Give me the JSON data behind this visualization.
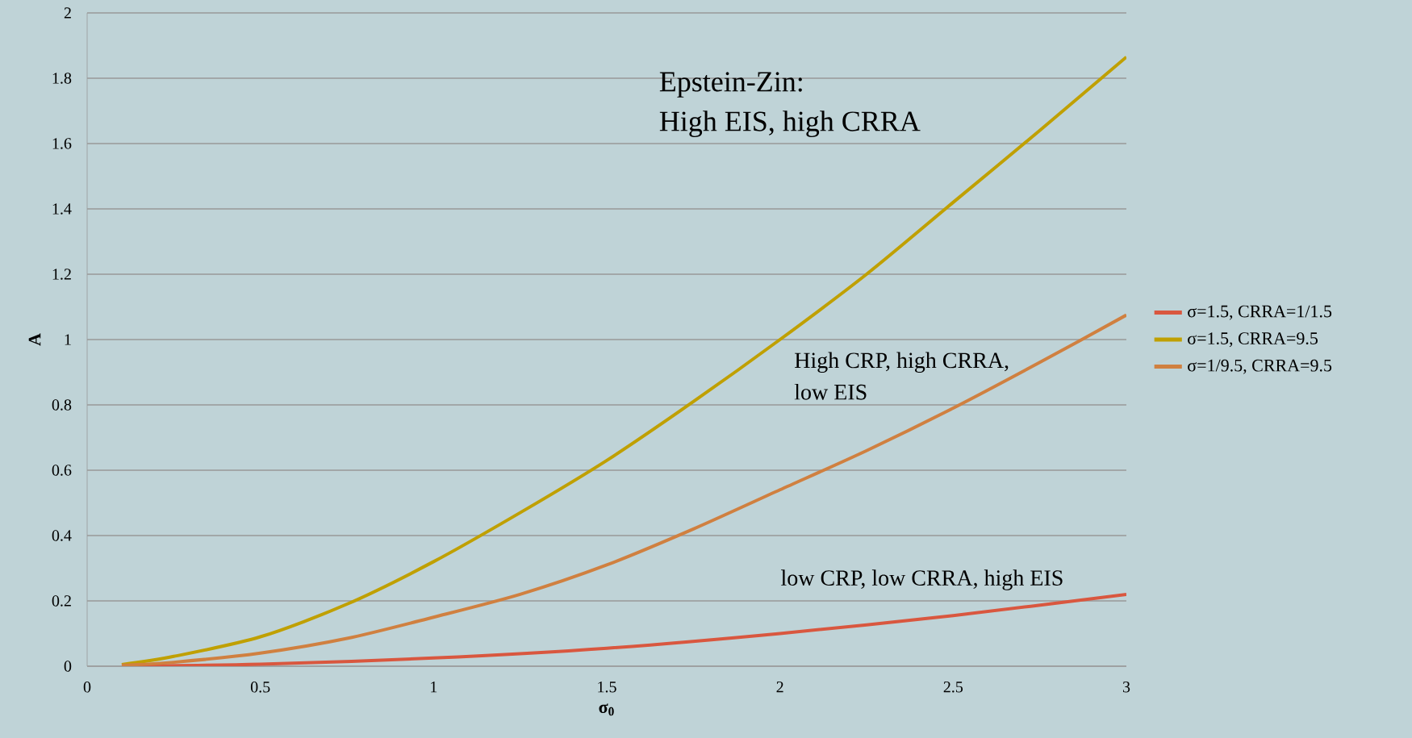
{
  "chart_data": {
    "type": "line",
    "xlabel": "σ$_{0}$",
    "ylabel": "A",
    "xlim": [
      0,
      3
    ],
    "ylim": [
      0,
      2
    ],
    "xticks": [
      0,
      0.5,
      1,
      1.5,
      2,
      2.5,
      3
    ],
    "yticks": [
      0,
      0.2,
      0.4,
      0.6,
      0.8,
      1,
      1.2,
      1.4,
      1.6,
      1.8,
      2
    ],
    "grid": "y",
    "legend": "right",
    "line_style": "solid",
    "marker": "none",
    "series": [
      {
        "name": "σ=1.5, CRRA=1/1.5",
        "color": "#d9573f",
        "x": [
          0.1,
          0.5,
          1,
          1.5,
          2,
          2.5,
          3
        ],
        "values": [
          0,
          0.006,
          0.025,
          0.055,
          0.1,
          0.155,
          0.22
        ]
      },
      {
        "name": "σ=1.5, CRRA=9.5",
        "color": "#c0a000",
        "x": [
          0.1,
          0.25,
          0.5,
          0.75,
          1,
          1.25,
          1.5,
          1.75,
          2,
          2.25,
          2.5,
          2.75,
          3
        ],
        "values": [
          0.005,
          0.03,
          0.09,
          0.19,
          0.32,
          0.47,
          0.63,
          0.81,
          1.0,
          1.2,
          1.42,
          1.64,
          1.865
        ]
      },
      {
        "name": "σ=1/9.5, CRRA=9.5",
        "color": "#d08040",
        "x": [
          0.1,
          0.25,
          0.5,
          0.75,
          1,
          1.25,
          1.5,
          1.75,
          2,
          2.25,
          2.5,
          2.75,
          3
        ],
        "values": [
          0.003,
          0.012,
          0.04,
          0.085,
          0.15,
          0.22,
          0.31,
          0.42,
          0.54,
          0.66,
          0.79,
          0.93,
          1.075
        ]
      }
    ],
    "annotations": [
      "Epstein-Zin:",
      "High EIS, high CRRA",
      "High CRP, high CRRA,",
      "low EIS",
      "low CRP, low CRRA, high EIS"
    ]
  }
}
